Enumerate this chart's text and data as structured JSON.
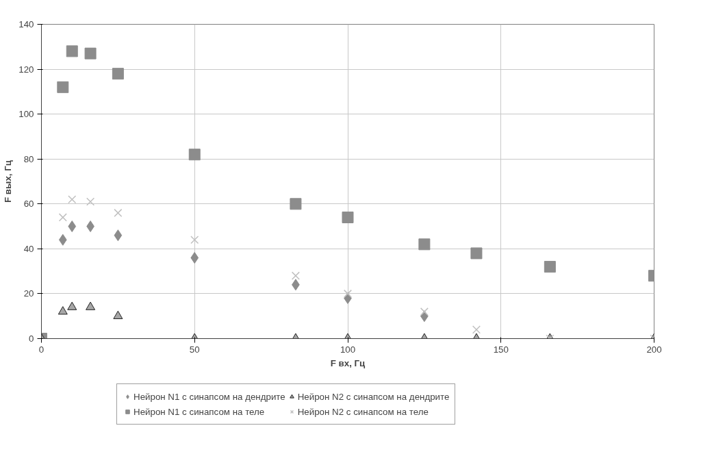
{
  "chart_data": {
    "type": "scatter",
    "xlabel": "F вх, Гц",
    "ylabel": "F вых, Гц",
    "x": [
      0,
      7,
      10,
      16,
      25,
      50,
      83,
      100,
      125,
      142,
      166,
      200
    ],
    "series": [
      {
        "name": "Нейрон N1 с синапсом на дендрите",
        "color": "#8c8c8c",
        "marker": "diamond",
        "values": [
          null,
          44,
          50,
          50,
          46,
          36,
          24,
          18,
          10,
          null,
          null,
          null
        ]
      },
      {
        "name": "Нейрон N1 с синапсом на теле",
        "color": "#8c8c8c",
        "marker": "square",
        "values": [
          0,
          112,
          128,
          127,
          118,
          82,
          60,
          54,
          42,
          38,
          32,
          28
        ]
      },
      {
        "name": "Нейрон N2 с синапсом на дендрите",
        "color": "#a6a6a6",
        "marker": "triangle",
        "values": [
          0,
          12,
          14,
          14,
          10,
          0,
          0,
          0,
          0,
          0,
          0,
          0
        ]
      },
      {
        "name": "Нейрон N2 с синапсом на теле",
        "color": "#c0c0c0",
        "marker": "cross",
        "values": [
          null,
          54,
          62,
          61,
          56,
          44,
          28,
          20,
          12,
          4,
          0,
          0
        ]
      }
    ],
    "xlim": [
      0,
      200
    ],
    "ylim": [
      0,
      140
    ],
    "xticks": [
      0,
      50,
      100,
      150,
      200
    ],
    "yticks": [
      0,
      20,
      40,
      60,
      80,
      100,
      120,
      140
    ],
    "grid": true,
    "legend": "bottom"
  }
}
